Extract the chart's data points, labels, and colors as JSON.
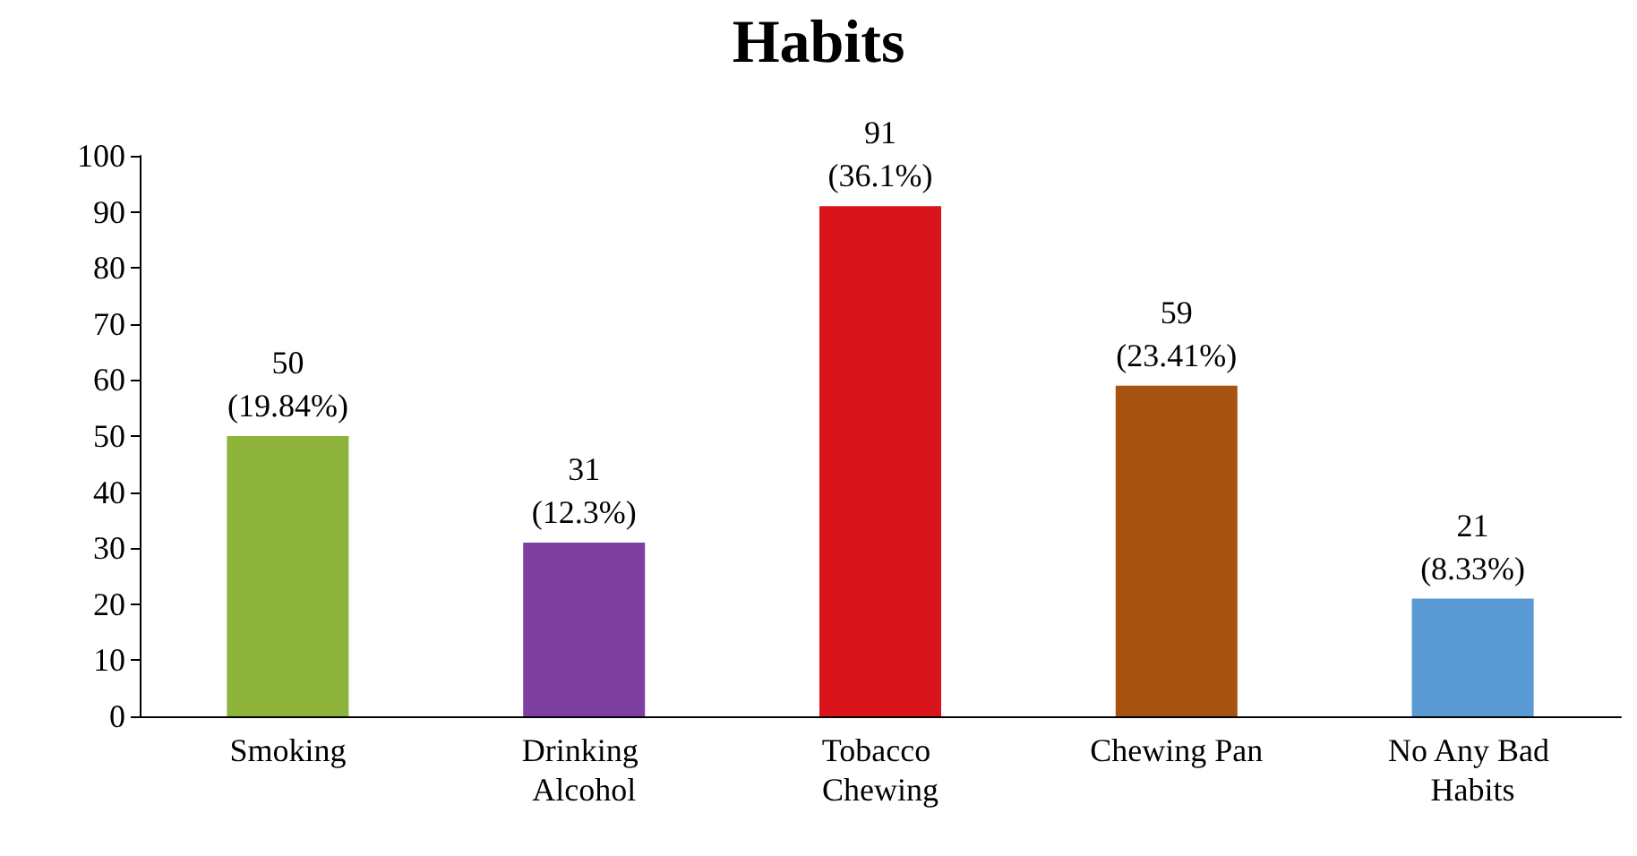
{
  "chart_data": {
    "type": "bar",
    "title": "Habits",
    "categories": [
      "Smoking",
      "Drinking Alcohol",
      "Tobacco Chewing",
      "Chewing Pan",
      "No Any Bad Habits"
    ],
    "values": [
      50,
      31,
      91,
      59,
      21
    ],
    "colors": [
      "#8db33a",
      "#7e3fa0",
      "#d9141a",
      "#a8520f",
      "#5b9bd5"
    ],
    "value_labels": [
      "50\n(19.84%)",
      "31\n(12.3%)",
      "91\n(36.1%)",
      "59\n(23.41%)",
      "21\n(8.33%)"
    ],
    "ylim": [
      0,
      100
    ],
    "yticks": [
      0,
      10,
      20,
      30,
      40,
      50,
      60,
      70,
      80,
      90,
      100
    ],
    "grid": false
  }
}
